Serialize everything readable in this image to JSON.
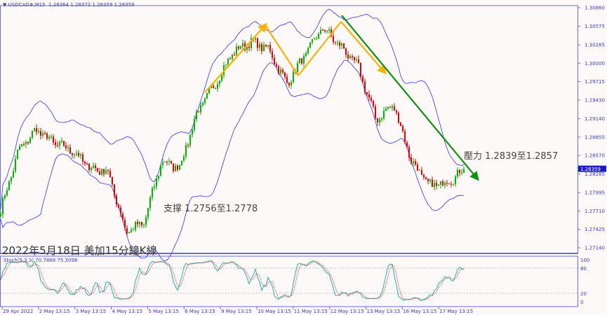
{
  "header": {
    "symbol_timeframe": "USDCAD#,M15",
    "ohlc": "1.28364 1.28372 1.28359 1.28359"
  },
  "chart_data": {
    "type": "candlestick",
    "title": "2022年5月18日 美加15分鐘K線",
    "price_axis": {
      "ticks": [
        "1.30860",
        "1.30575",
        "1.30285",
        "1.30000",
        "1.29715",
        "1.29430",
        "1.29140",
        "1.28855",
        "1.28570",
        "1.28285",
        "1.27995",
        "1.27710",
        "1.27425",
        "1.27140"
      ],
      "range": [
        1.27,
        1.31
      ],
      "current_price": "1.28359"
    },
    "time_axis": {
      "ticks": [
        "29 Apr 2022",
        "2 May 13:15",
        "3 May 13:15",
        "4 May 13:15",
        "5 May 13:15",
        "6 May 13:15",
        "9 May 13:15",
        "10 May 13:15",
        "11 May 13:15",
        "12 May 13:15",
        "13 May 13:15",
        "16 May 13:15",
        "17 May 13:15"
      ]
    },
    "approx_close_path": [
      1.2772,
      1.2865,
      1.2897,
      1.2876,
      1.2865,
      1.2838,
      1.2832,
      1.274,
      1.2751,
      1.2848,
      1.2838,
      1.2924,
      1.2968,
      1.3017,
      1.3033,
      1.3022,
      1.2968,
      1.3011,
      1.3055,
      1.3027,
      1.2995,
      1.2913,
      1.2935,
      1.2848,
      1.281,
      1.2816,
      1.28359
    ],
    "indicators": {
      "bollinger_bands": true,
      "stochastic": {
        "label": "Stoch(5,3,3) 70.7868 75.3098",
        "levels": [
          "100",
          "80",
          "20",
          "0"
        ]
      }
    },
    "annotations": {
      "support": "支撑 1.2756至1.2778",
      "resistance": "壓力 1.2839至1.2857"
    },
    "colors": {
      "bull": "#00b400",
      "bear": "#e00000",
      "band": "#3030ff",
      "trend_up": "#ffb000",
      "trend_down": "#109010",
      "axis": "#6b6bdc",
      "stoch_main": "#20b2aa",
      "stoch_signal": "#ff3030"
    }
  }
}
